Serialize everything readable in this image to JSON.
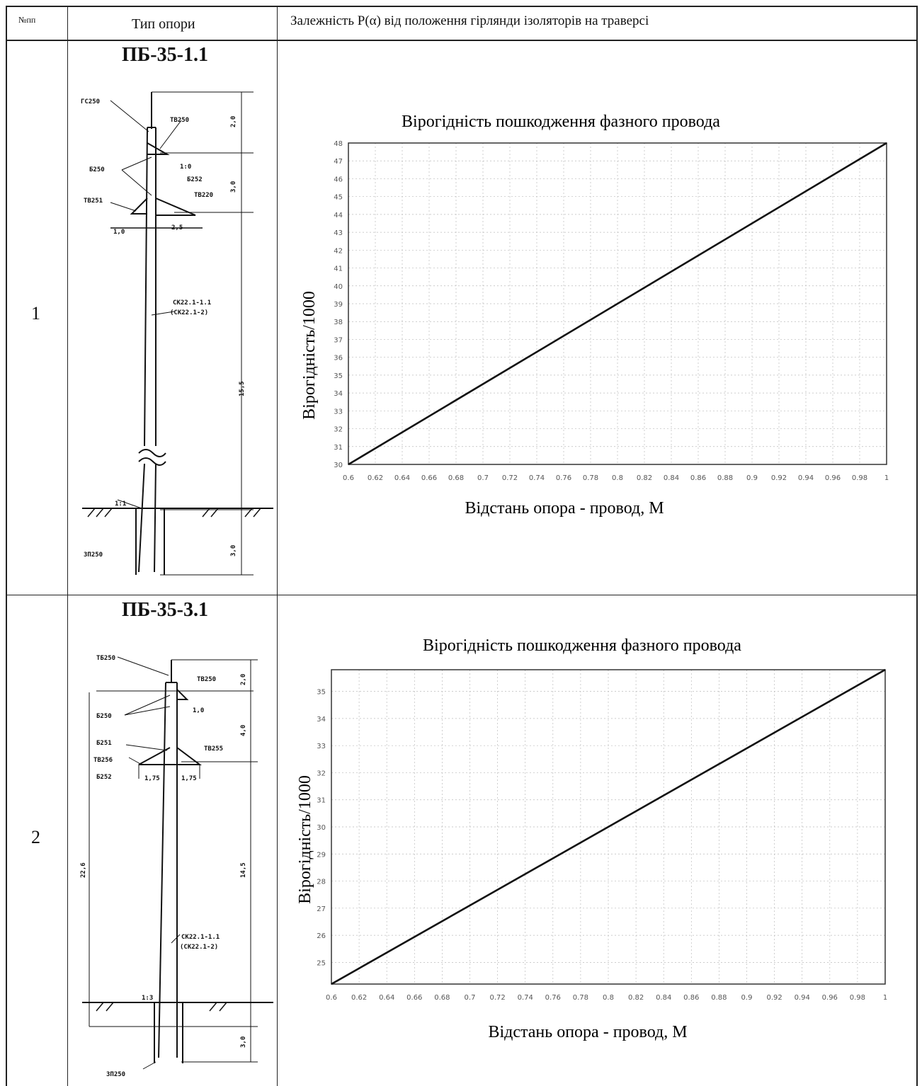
{
  "table": {
    "headers": {
      "num": "№пп",
      "type": "Тип опори",
      "dependency": "Залежність P(α) від положення гірлянди ізоляторів на траверсі"
    },
    "rows": [
      {
        "num": "1",
        "pole_type": "ПБ-35-1.1",
        "pole_labels": [
          "ГС250",
          "ТВ250",
          "Б250",
          "Б252",
          "ТВ251",
          "ТВ220",
          "СК22.1-1.1",
          "(СК22.1-2)",
          "ЗП250",
          "1:0",
          "1:1",
          "1,0",
          "2,5",
          "2,0",
          "3,0",
          "15,5",
          "3,0"
        ]
      },
      {
        "num": "2",
        "pole_type": "ПБ-35-3.1",
        "pole_labels": [
          "ТБ250",
          "ТВ250",
          "Б250",
          "Б251",
          "ТВ256",
          "Б252",
          "ТВ255",
          "СК22.1-1.1",
          "(СК22.1-2)",
          "ЗП250",
          "1,0",
          "1,75",
          "1,75",
          "2,0",
          "4,0",
          "14,5",
          "22,6",
          "3,0",
          "1:3"
        ]
      }
    ]
  },
  "chart_data": [
    {
      "type": "line",
      "title": "Вірогідність пошкодження фазного провода",
      "xlabel": "Відстань опора - провод, М",
      "ylabel": "Вірогідність/1000",
      "x_ticks": [
        "0.6",
        "0.62",
        "0.64",
        "0.66",
        "0.68",
        "0.7",
        "0.72",
        "0.74",
        "0.76",
        "0.78",
        "0.8",
        "0.82",
        "0.84",
        "0.86",
        "0.88",
        "0.9",
        "0.92",
        "0.94",
        "0.96",
        "0.98",
        "1"
      ],
      "y_ticks": [
        "30",
        "31",
        "32",
        "33",
        "34",
        "35",
        "36",
        "37",
        "38",
        "39",
        "40",
        "41",
        "42",
        "43",
        "44",
        "45",
        "46",
        "47",
        "48"
      ],
      "xlim": [
        0.6,
        1.0
      ],
      "ylim": [
        30,
        48
      ],
      "grid": true,
      "series": [
        {
          "x": [
            0.6,
            1.0
          ],
          "y": [
            30,
            48
          ]
        }
      ]
    },
    {
      "type": "line",
      "title": "Вірогідність пошкодження фазного провода",
      "xlabel": "Відстань опора - провод, М",
      "ylabel": "Вірогідність/1000",
      "x_ticks": [
        "0.6",
        "0.62",
        "0.64",
        "0.66",
        "0.68",
        "0.7",
        "0.72",
        "0.74",
        "0.76",
        "0.78",
        "0.8",
        "0.82",
        "0.84",
        "0.86",
        "0.88",
        "0.9",
        "0.92",
        "0.94",
        "0.96",
        "0.98",
        "1"
      ],
      "y_ticks": [
        "25",
        "26",
        "27",
        "28",
        "29",
        "30",
        "31",
        "32",
        "33",
        "34",
        "35"
      ],
      "xlim": [
        0.6,
        1.0
      ],
      "ylim": [
        24.2,
        35.8
      ],
      "grid": true,
      "series": [
        {
          "x": [
            0.6,
            1.0
          ],
          "y": [
            24.2,
            35.8
          ]
        }
      ]
    }
  ]
}
